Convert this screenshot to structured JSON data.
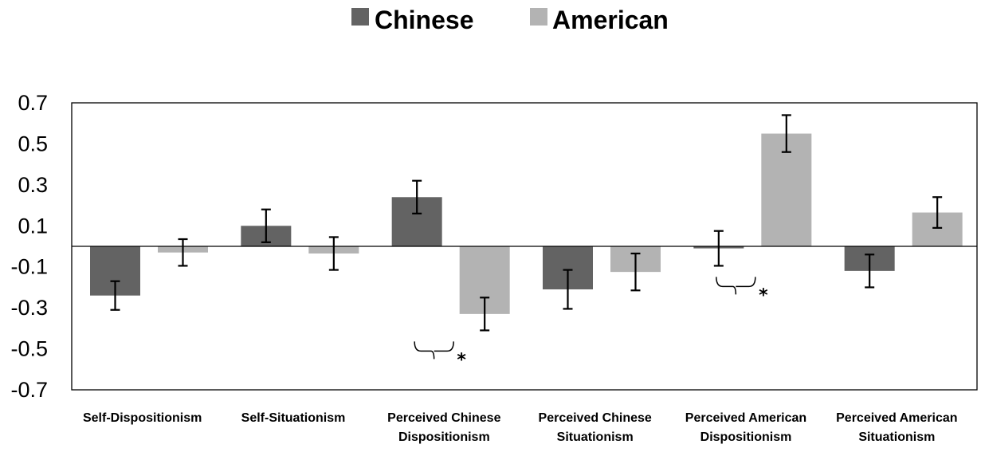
{
  "chart_data": {
    "type": "bar",
    "categories": [
      [
        "Self-Dispositionism"
      ],
      [
        "Self-Situationism"
      ],
      [
        "Perceived Chinese",
        "Dispositionism"
      ],
      [
        "Perceived Chinese",
        "Situationism"
      ],
      [
        "Perceived American",
        "Dispositionism"
      ],
      [
        "Perceived American",
        "Situationism"
      ]
    ],
    "series": [
      {
        "name": "Chinese",
        "color": "#636363",
        "values": [
          -0.24,
          0.1,
          0.24,
          -0.21,
          -0.01,
          -0.12
        ],
        "error": [
          0.07,
          0.08,
          0.08,
          0.095,
          0.085,
          0.08
        ]
      },
      {
        "name": "American",
        "color": "#b3b3b3",
        "values": [
          -0.03,
          -0.035,
          -0.33,
          -0.125,
          0.55,
          0.165
        ],
        "error": [
          0.065,
          0.08,
          0.08,
          0.09,
          0.09,
          0.075
        ]
      }
    ],
    "ylim": [
      -0.7,
      0.7
    ],
    "yticks": [
      "0.7",
      "0.5",
      "0.3",
      "0.1",
      "-0.1",
      "-0.3",
      "-0.5",
      "-0.7"
    ],
    "ytick_values": [
      0.7,
      0.5,
      0.3,
      0.1,
      -0.1,
      -0.3,
      -0.5,
      -0.7
    ],
    "significance": [
      {
        "category_index": 2,
        "marker": "*"
      },
      {
        "category_index": 4,
        "marker": "*"
      }
    ],
    "legend_position": "top-center",
    "grid": false
  }
}
